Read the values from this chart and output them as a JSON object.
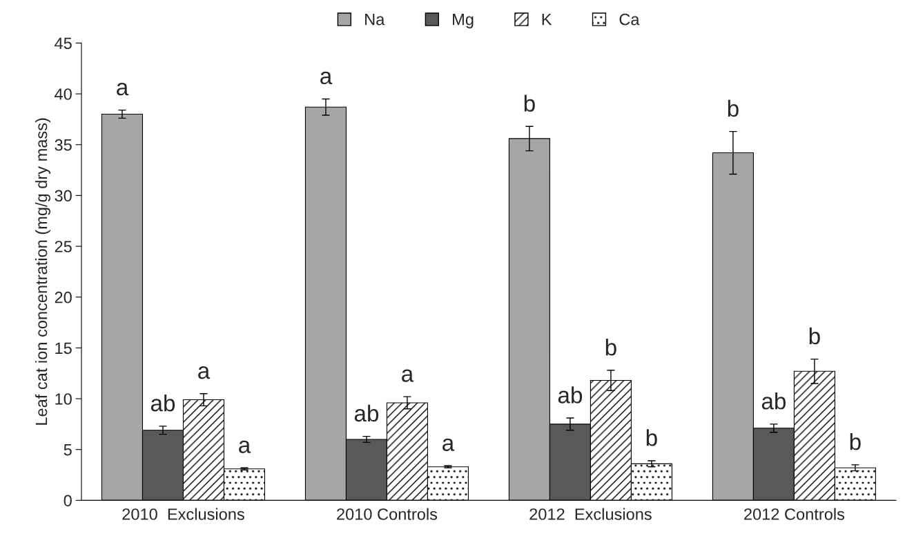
{
  "chart_data": {
    "type": "bar",
    "ylabel": "Leaf cat ion concentration (mg/g dry mass)",
    "categories": [
      "2010  Exclusions",
      "2010 Controls",
      "2012  Exclusions",
      "2012 Controls"
    ],
    "series": [
      {
        "name": "Na",
        "color": "#a6a6a6",
        "values": [
          38.0,
          38.7,
          35.6,
          34.2
        ],
        "errors": [
          0.4,
          0.8,
          1.2,
          2.1
        ],
        "value_labels": [
          "a",
          "a",
          "b",
          "b"
        ]
      },
      {
        "name": "Mg",
        "color": "#595959",
        "values": [
          6.9,
          6.0,
          7.5,
          7.1
        ],
        "errors": [
          0.4,
          0.3,
          0.6,
          0.4
        ],
        "value_labels": [
          "ab",
          "ab",
          "ab",
          "ab"
        ]
      },
      {
        "name": "K",
        "color": "#ffffff",
        "values": [
          9.9,
          9.6,
          11.8,
          12.7
        ],
        "errors": [
          0.6,
          0.6,
          1.0,
          1.2
        ],
        "value_labels": [
          "a",
          "a",
          "b",
          "b"
        ]
      },
      {
        "name": "Ca",
        "color": "#ffffff",
        "values": [
          3.1,
          3.3,
          3.6,
          3.2
        ],
        "errors": [
          0.1,
          0.1,
          0.3,
          0.3
        ],
        "value_labels": [
          "a",
          "a",
          "b",
          "b"
        ]
      }
    ],
    "ylim": [
      0,
      45
    ],
    "yticks": [
      0,
      5,
      10,
      15,
      20,
      25,
      30,
      35,
      40,
      45
    ],
    "grid": false,
    "legend": "top"
  }
}
